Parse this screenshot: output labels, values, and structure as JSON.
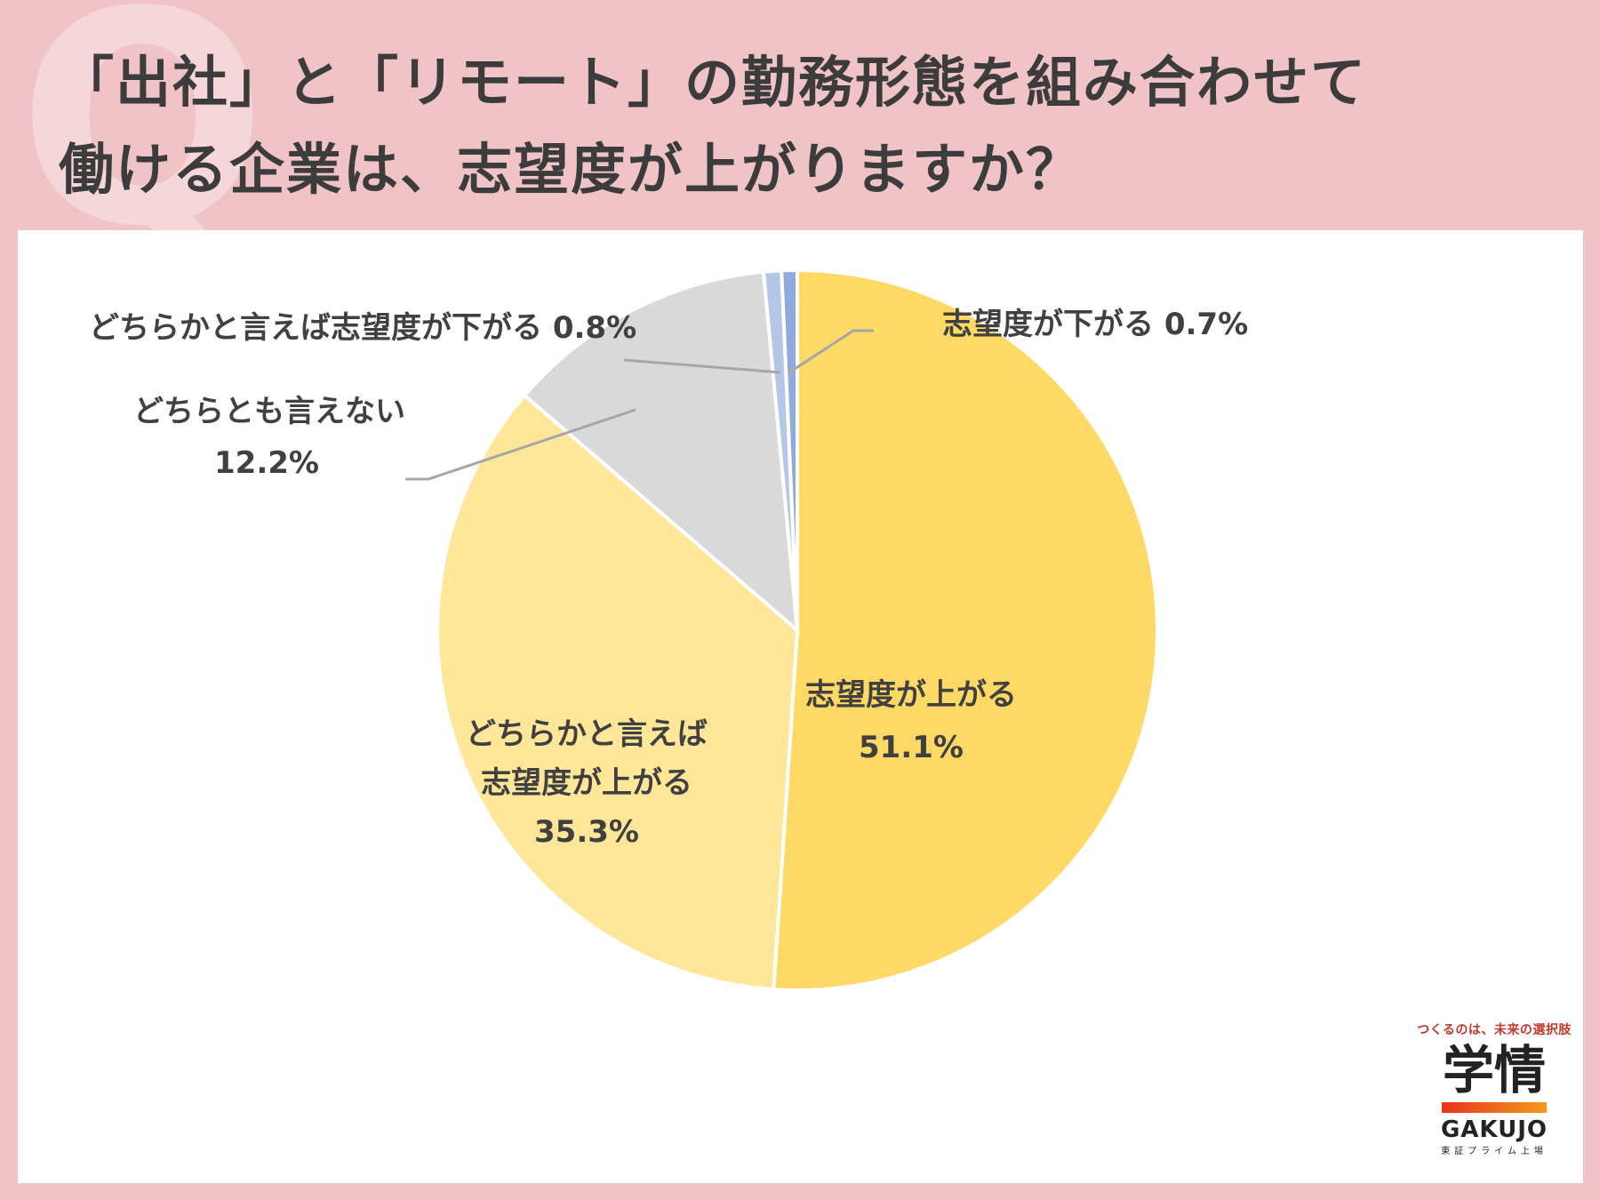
{
  "title": {
    "line1": "「出社」と「リモート」の勤務形態を組み合わせて",
    "line2": "働ける企業は、志望度が上がりますか？"
  },
  "deco_letter": "Q",
  "chart_data": {
    "type": "pie",
    "start_angle_deg": 0,
    "direction": "clockwise",
    "slices": [
      {
        "label": "志望度が上がる",
        "value": 51.1,
        "value_label": "51.1%",
        "color": "#ffd966"
      },
      {
        "label_line1": "どちらかと言えば",
        "label_line2": "志望度が上がる",
        "value": 35.3,
        "value_label": "35.3%",
        "color": "#ffe699"
      },
      {
        "label": "どちらとも言えない",
        "value": 12.2,
        "value_label": "12.2%",
        "color": "#d9d9d9"
      },
      {
        "label": "どちらかと言えば志望度が下がる",
        "value": 0.8,
        "value_label": "0.8%",
        "color": "#b4c7e7"
      },
      {
        "label": "志望度が下がる",
        "value": 0.7,
        "value_label": "0.7%",
        "color": "#8faadc"
      }
    ]
  },
  "logo": {
    "tagline": "つくるのは、未来の選択肢",
    "kanji": "学情",
    "name": "GAKUJO",
    "sub": "東証プライム上場"
  }
}
